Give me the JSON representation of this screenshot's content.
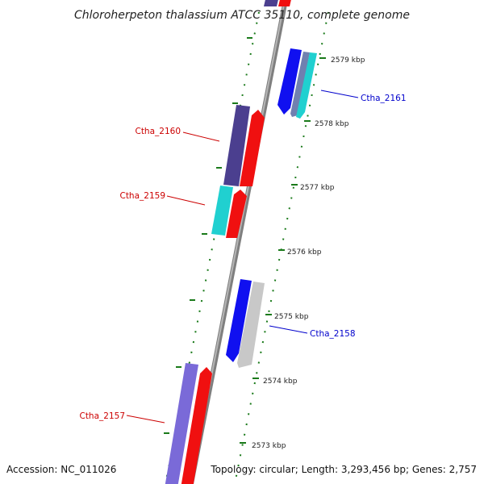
{
  "title": "Chloroherpeton thalassium ATCC 35110, complete genome",
  "footer": {
    "accession": "Accession: NC_011026",
    "summary": "Topology: circular; Length: 3,293,456 bp; Genes: 2,757"
  },
  "ticks": [
    {
      "label": "2579 kbp",
      "pos_kbp": 2579
    },
    {
      "label": "2578 kbp",
      "pos_kbp": 2578
    },
    {
      "label": "2577 kbp",
      "pos_kbp": 2577
    },
    {
      "label": "2576 kbp",
      "pos_kbp": 2576
    },
    {
      "label": "2575 kbp",
      "pos_kbp": 2575
    },
    {
      "label": "2574 kbp",
      "pos_kbp": 2574
    },
    {
      "label": "2573 kbp",
      "pos_kbp": 2573
    }
  ],
  "genes": [
    {
      "name": "Ctha_2161",
      "strand": "forward",
      "color": "#0000ee"
    },
    {
      "name": "Ctha_2160",
      "strand": "reverse",
      "color": "#dd0000"
    },
    {
      "name": "Ctha_2159",
      "strand": "reverse",
      "color": "#dd0000"
    },
    {
      "name": "Ctha_2158",
      "strand": "forward",
      "color": "#0000ee"
    },
    {
      "name": "Ctha_2157",
      "strand": "reverse",
      "color": "#dd0000"
    }
  ],
  "colors": {
    "backbone": "#8e8e8e",
    "tick_mark": "#1a7a1a",
    "cds_blue": "#1010f0",
    "cds_red": "#f01010",
    "cds_purple": "#4b3f8f",
    "cds_cyan": "#20d0d0",
    "cds_slate": "#7080b0",
    "cds_gray": "#c8c8c8",
    "cds_lavender": "#7a6ad8"
  }
}
